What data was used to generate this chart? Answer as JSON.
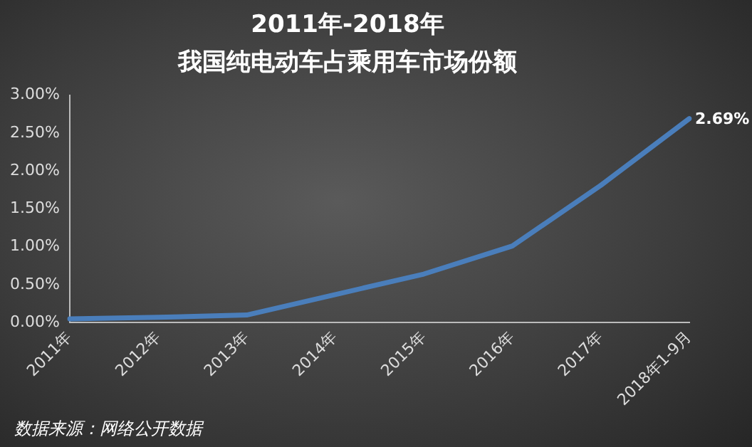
{
  "chart_data": {
    "type": "line",
    "title": "2011年-2018年",
    "subtitle": "我国纯电动车占乘用车市场份额",
    "categories": [
      "2011年",
      "2012年",
      "2013年",
      "2014年",
      "2015年",
      "2016年",
      "2017年",
      "2018年1-9月"
    ],
    "series": [
      {
        "color": "#4a7ebb",
        "values": [
          0.05,
          0.07,
          0.1,
          0.37,
          0.64,
          1.01,
          1.81,
          2.69
        ],
        "value_labels": [
          null,
          null,
          null,
          null,
          null,
          null,
          null,
          "2.69%"
        ]
      }
    ],
    "ylim": [
      0,
      3
    ],
    "yticks": [
      {
        "value": 0,
        "label": "0.00%"
      },
      {
        "value": 0.5,
        "label": "0.50%"
      },
      {
        "value": 1,
        "label": "1.00%"
      },
      {
        "value": 1.5,
        "label": "1.50%"
      },
      {
        "value": 2,
        "label": "2.00%"
      },
      {
        "value": 2.5,
        "label": "2.50%"
      },
      {
        "value": 3,
        "label": "3.00%"
      }
    ],
    "grid": false,
    "legend": false,
    "marker": "none",
    "line_style": "solid",
    "annotations": [
      "数据来源：网络公开数据"
    ]
  }
}
